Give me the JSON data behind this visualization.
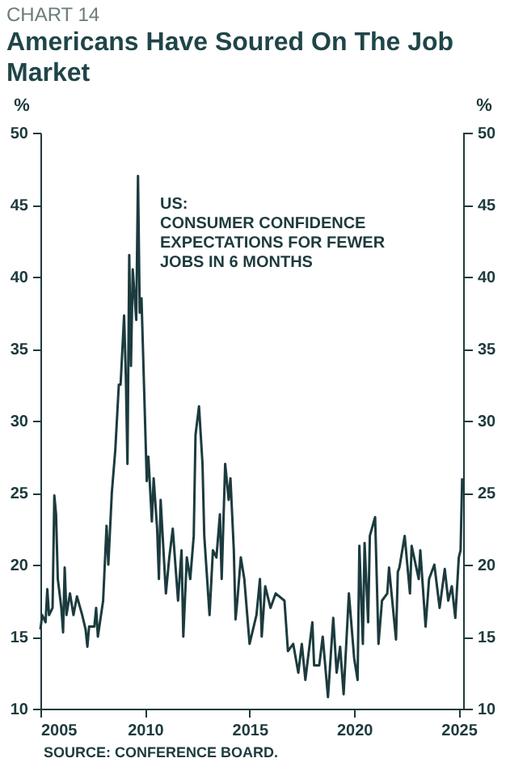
{
  "chart_data": {
    "type": "line",
    "title": "Americans Have Soured On The Job Market",
    "annotations": [
      "CHART 14",
      "US:\nCONSUMER CONFIDENCE EXPECTATIONS FOR FEWER JOBS IN 6 MONTHS",
      "SOURCE: CONFERENCE BOARD."
    ],
    "ylabel": "%",
    "y2label": "%",
    "x": [
      "2005-01",
      "2005-02",
      "2005-04",
      "2005-05",
      "2005-06",
      "2005-08",
      "2005-09",
      "2005-10",
      "2005-11",
      "2006-01",
      "2006-02",
      "2006-03",
      "2006-04",
      "2006-06",
      "2006-08",
      "2006-10",
      "2007-01",
      "2007-03",
      "2007-04",
      "2007-05",
      "2007-08",
      "2007-09",
      "2007-10",
      "2008-01",
      "2008-03",
      "2008-04",
      "2008-06",
      "2008-08",
      "2008-10",
      "2008-11",
      "2009-01",
      "2009-02",
      "2009-03",
      "2009-04",
      "2009-05",
      "2009-06",
      "2009-08",
      "2009-09",
      "2009-10",
      "2009-11",
      "2010-02",
      "2010-03",
      "2010-05",
      "2010-06",
      "2010-08",
      "2010-09",
      "2010-10",
      "2011-01",
      "2011-03",
      "2011-05",
      "2011-06",
      "2011-08",
      "2011-10",
      "2011-11",
      "2012-01",
      "2012-03",
      "2012-05",
      "2012-06",
      "2012-08",
      "2012-10",
      "2012-11",
      "2013-02",
      "2013-04",
      "2013-06",
      "2013-08",
      "2013-09",
      "2013-11",
      "2014-01",
      "2014-02",
      "2014-04",
      "2014-05",
      "2014-06",
      "2014-08",
      "2014-10",
      "2015-01",
      "2015-05",
      "2015-07",
      "2015-08",
      "2015-10",
      "2016-01",
      "2016-04",
      "2016-09",
      "2016-11",
      "2017-02",
      "2017-05",
      "2017-07",
      "2017-09",
      "2018-01",
      "2018-02",
      "2018-05",
      "2018-07",
      "2018-10",
      "2019-01",
      "2019-03",
      "2019-05",
      "2019-07",
      "2019-10",
      "2020-01",
      "2020-03",
      "2020-04",
      "2020-06",
      "2020-07",
      "2020-09",
      "2020-10",
      "2021-01",
      "2021-03",
      "2021-05",
      "2021-08",
      "2021-09",
      "2022-01",
      "2022-02",
      "2022-03",
      "2022-06",
      "2022-09",
      "2022-10",
      "2023-02",
      "2023-03",
      "2023-06",
      "2023-08",
      "2023-11",
      "2024-02",
      "2024-05",
      "2024-07",
      "2024-09",
      "2024-11",
      "2025-01",
      "2025-02",
      "2025-03"
    ],
    "series": [
      {
        "color": "#1c3b3e",
        "values": [
          15.5,
          16.5,
          16,
          18.3,
          16.5,
          17,
          24.8,
          23.5,
          19,
          17,
          15.3,
          19.8,
          16.5,
          18,
          16.5,
          17.8,
          16.5,
          15.5,
          14.3,
          15.7,
          15.7,
          17,
          15,
          17.5,
          22.7,
          20,
          25,
          28,
          32.5,
          32.5,
          37.3,
          33,
          27,
          41.5,
          33.8,
          40.5,
          37,
          47,
          37.5,
          38.5,
          25.8,
          27.5,
          23,
          26,
          22.5,
          19,
          24.5,
          18,
          20.5,
          22.5,
          20.8,
          17.5,
          21,
          15,
          20.5,
          19,
          22,
          29,
          31,
          27,
          22,
          16.5,
          21,
          20.5,
          23.5,
          19,
          27,
          24.5,
          26,
          21,
          16.2,
          17.5,
          20.5,
          19,
          14.5,
          16.5,
          19,
          15,
          18.5,
          17,
          18,
          17.5,
          14,
          14.5,
          12.5,
          14.5,
          12,
          16,
          13,
          13,
          15,
          10.8,
          16.3,
          12.5,
          14.3,
          11,
          18,
          13.5,
          12,
          21.3,
          14.5,
          21.5,
          16,
          22,
          23.3,
          14.5,
          17.5,
          18,
          19.8,
          14.8,
          19.5,
          19.8,
          22,
          18,
          21.3,
          19,
          21,
          15.7,
          19,
          20,
          17,
          19.7,
          17.5,
          18.5,
          16.3,
          20.5,
          21,
          26
        ]
      }
    ],
    "xlim": [
      "2005-01",
      "2025-04"
    ],
    "xticks": [
      "2005",
      "2010",
      "2015",
      "2020",
      "2025"
    ],
    "ylim": [
      10,
      50
    ],
    "yticks": [
      10,
      15,
      20,
      25,
      30,
      35,
      40,
      45,
      50
    ],
    "y2lim": [
      10,
      50
    ],
    "y2ticks": [
      10,
      15,
      20,
      25,
      30,
      35,
      40,
      45,
      50
    ],
    "grid": false,
    "line_style": "solid",
    "marker": "none"
  }
}
